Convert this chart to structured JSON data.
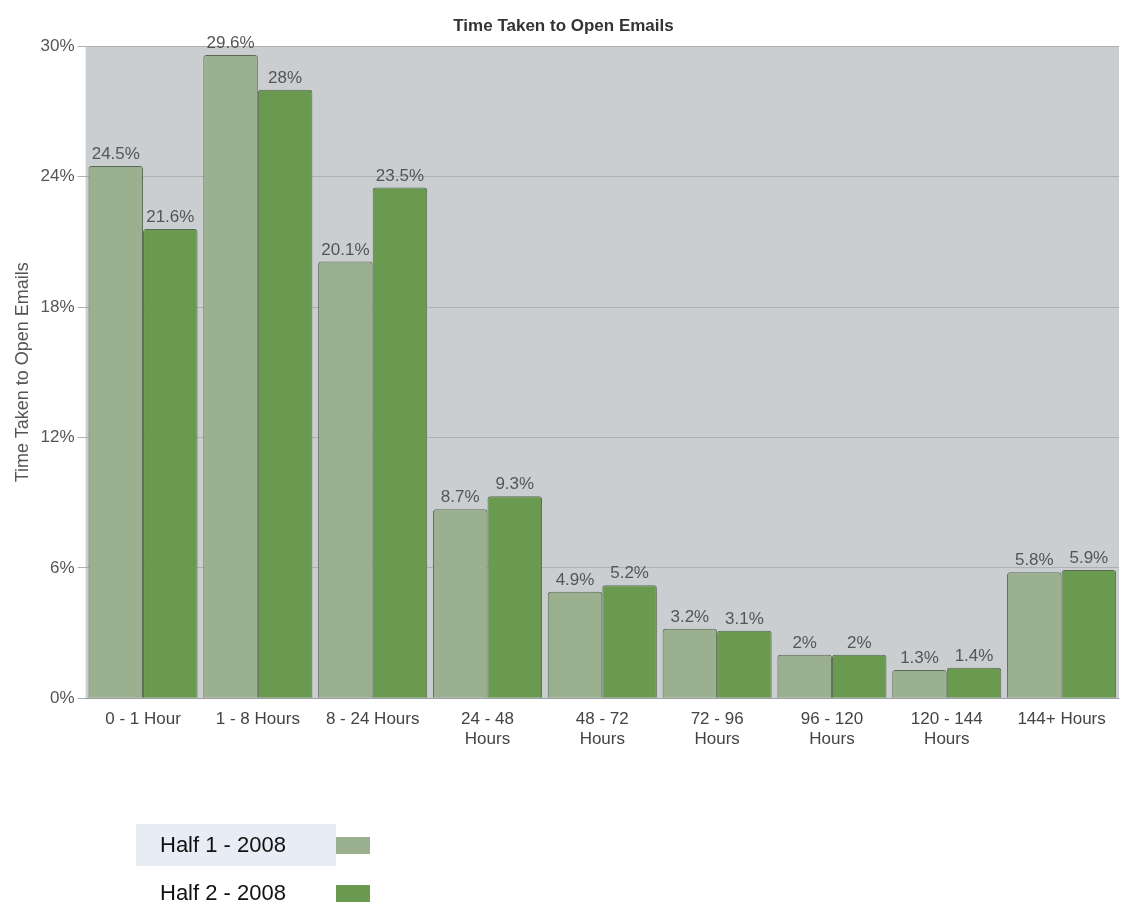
{
  "chart_data": {
    "type": "bar",
    "title": "Time Taken to Open Emails",
    "ylabel": "Time Taken to Open Emails",
    "categories": [
      "0 - 1 Hour",
      "1 - 8 Hours",
      "8 - 24 Hours",
      "24 - 48 Hours",
      "48 - 72 Hours",
      "72 - 96 Hours",
      "96 - 120 Hours",
      "120 - 144 Hours",
      "144+ Hours"
    ],
    "series": [
      {
        "name": "Half 1 - 2008",
        "color": "#9bb08f",
        "values": [
          24.5,
          29.6,
          20.1,
          8.7,
          4.9,
          3.2,
          2,
          1.3,
          5.8
        ],
        "value_labels": [
          "24.5%",
          "29.6%",
          "20.1%",
          "8.7%",
          "4.9%",
          "3.2%",
          "2%",
          "1.3%",
          "5.8%"
        ]
      },
      {
        "name": "Half 2 - 2008",
        "color": "#6a9a50",
        "values": [
          21.6,
          28,
          23.5,
          9.3,
          5.2,
          3.1,
          2,
          1.4,
          5.9
        ],
        "value_labels": [
          "21.6%",
          "28%",
          "23.5%",
          "9.3%",
          "5.2%",
          "3.1%",
          "2%",
          "1.4%",
          "5.9%"
        ]
      }
    ],
    "ylim": [
      0,
      30
    ],
    "yticks": [
      {
        "value": 0,
        "label": "0%"
      },
      {
        "value": 6,
        "label": "6%"
      },
      {
        "value": 12,
        "label": "12%"
      },
      {
        "value": 18,
        "label": "18%"
      },
      {
        "value": 24,
        "label": "24%"
      },
      {
        "value": 30,
        "label": "30%"
      }
    ],
    "grid": "y",
    "legend": "bottom left"
  }
}
